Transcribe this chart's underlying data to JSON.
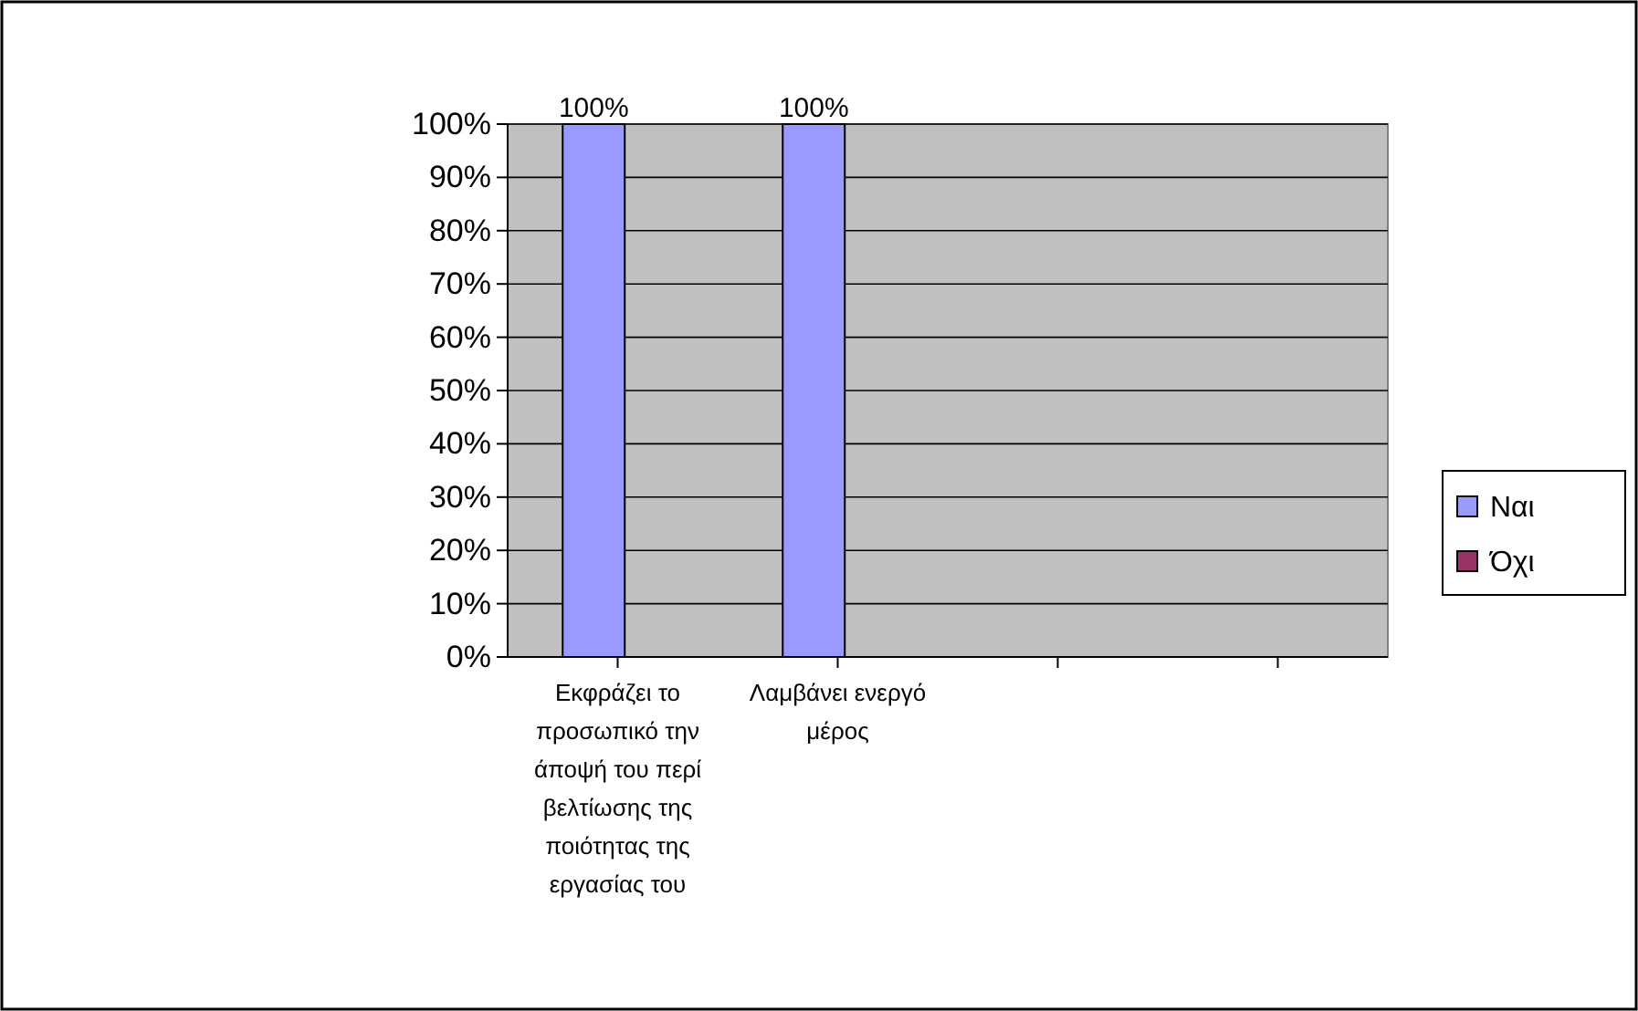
{
  "chart_data": {
    "type": "bar",
    "categories": [
      "Εκφράζει το προσωπικό την άποψή του περί βελτίωσης της ποιότητας της εργασίας του",
      "Λαμβάνει ενεργό μέρος",
      null,
      null
    ],
    "series": [
      {
        "name": "Ναι",
        "color": "#9999ff",
        "values": [
          100,
          100,
          null,
          null
        ],
        "value_labels": [
          "100%",
          "100%",
          null,
          null
        ]
      },
      {
        "name": "Όχι",
        "color": "#993366",
        "values": [
          null,
          null,
          null,
          null
        ],
        "value_labels": [
          null,
          null,
          null,
          null
        ]
      }
    ],
    "ylim": [
      0,
      100
    ],
    "yticks": [
      {
        "value": 0,
        "label": "0%"
      },
      {
        "value": 10,
        "label": "10%"
      },
      {
        "value": 20,
        "label": "20%"
      },
      {
        "value": 30,
        "label": "30%"
      },
      {
        "value": 40,
        "label": "40%"
      },
      {
        "value": 50,
        "label": "50%"
      },
      {
        "value": 60,
        "label": "60%"
      },
      {
        "value": 70,
        "label": "70%"
      },
      {
        "value": 80,
        "label": "80%"
      },
      {
        "value": 90,
        "label": "90%"
      },
      {
        "value": 100,
        "label": "100%"
      }
    ],
    "grid": "y",
    "legend": "right"
  }
}
